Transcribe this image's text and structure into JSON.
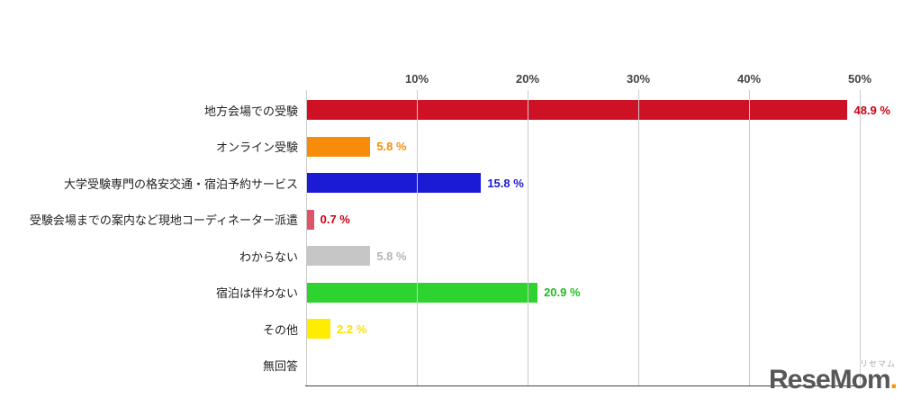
{
  "chart_data": {
    "type": "bar",
    "orientation": "horizontal",
    "title": "",
    "xlabel": "",
    "ylabel": "",
    "xlim": [
      0,
      50
    ],
    "x_ticks": [
      "10%",
      "20%",
      "30%",
      "40%",
      "50%"
    ],
    "grid": true,
    "grid_color": "#cccccc",
    "axis_color": "#444444",
    "categories": [
      "地方会場での受験",
      "オンライン受験",
      "大学受験専門の格安交通・宿泊予約サービス",
      "受験会場までの案内など現地コーディネーター派遣",
      "わからない",
      "宿泊は伴わない",
      "その他",
      "無回答"
    ],
    "values": [
      48.9,
      5.8,
      15.8,
      0.7,
      5.8,
      20.9,
      2.2,
      0
    ],
    "value_labels": [
      "48.9 %",
      "5.8 %",
      "15.8 %",
      "0.7 %",
      "5.8 %",
      "20.9 %",
      "2.2 %",
      ""
    ],
    "bar_colors": [
      "#cf1126",
      "#f78c0a",
      "#1b1bd6",
      "#dd5566",
      "#c6c6c6",
      "#2fd32f",
      "#ffec00",
      "transparent"
    ],
    "value_label_colors": [
      "#cc0011",
      "#f78c0a",
      "#1b1bd6",
      "#cc0011",
      "#b5b5b5",
      "#22bb22",
      "#ffe000",
      "#999999"
    ]
  },
  "logo": {
    "text": "ReseMom",
    "dot": ".",
    "kana": "リセマム"
  }
}
